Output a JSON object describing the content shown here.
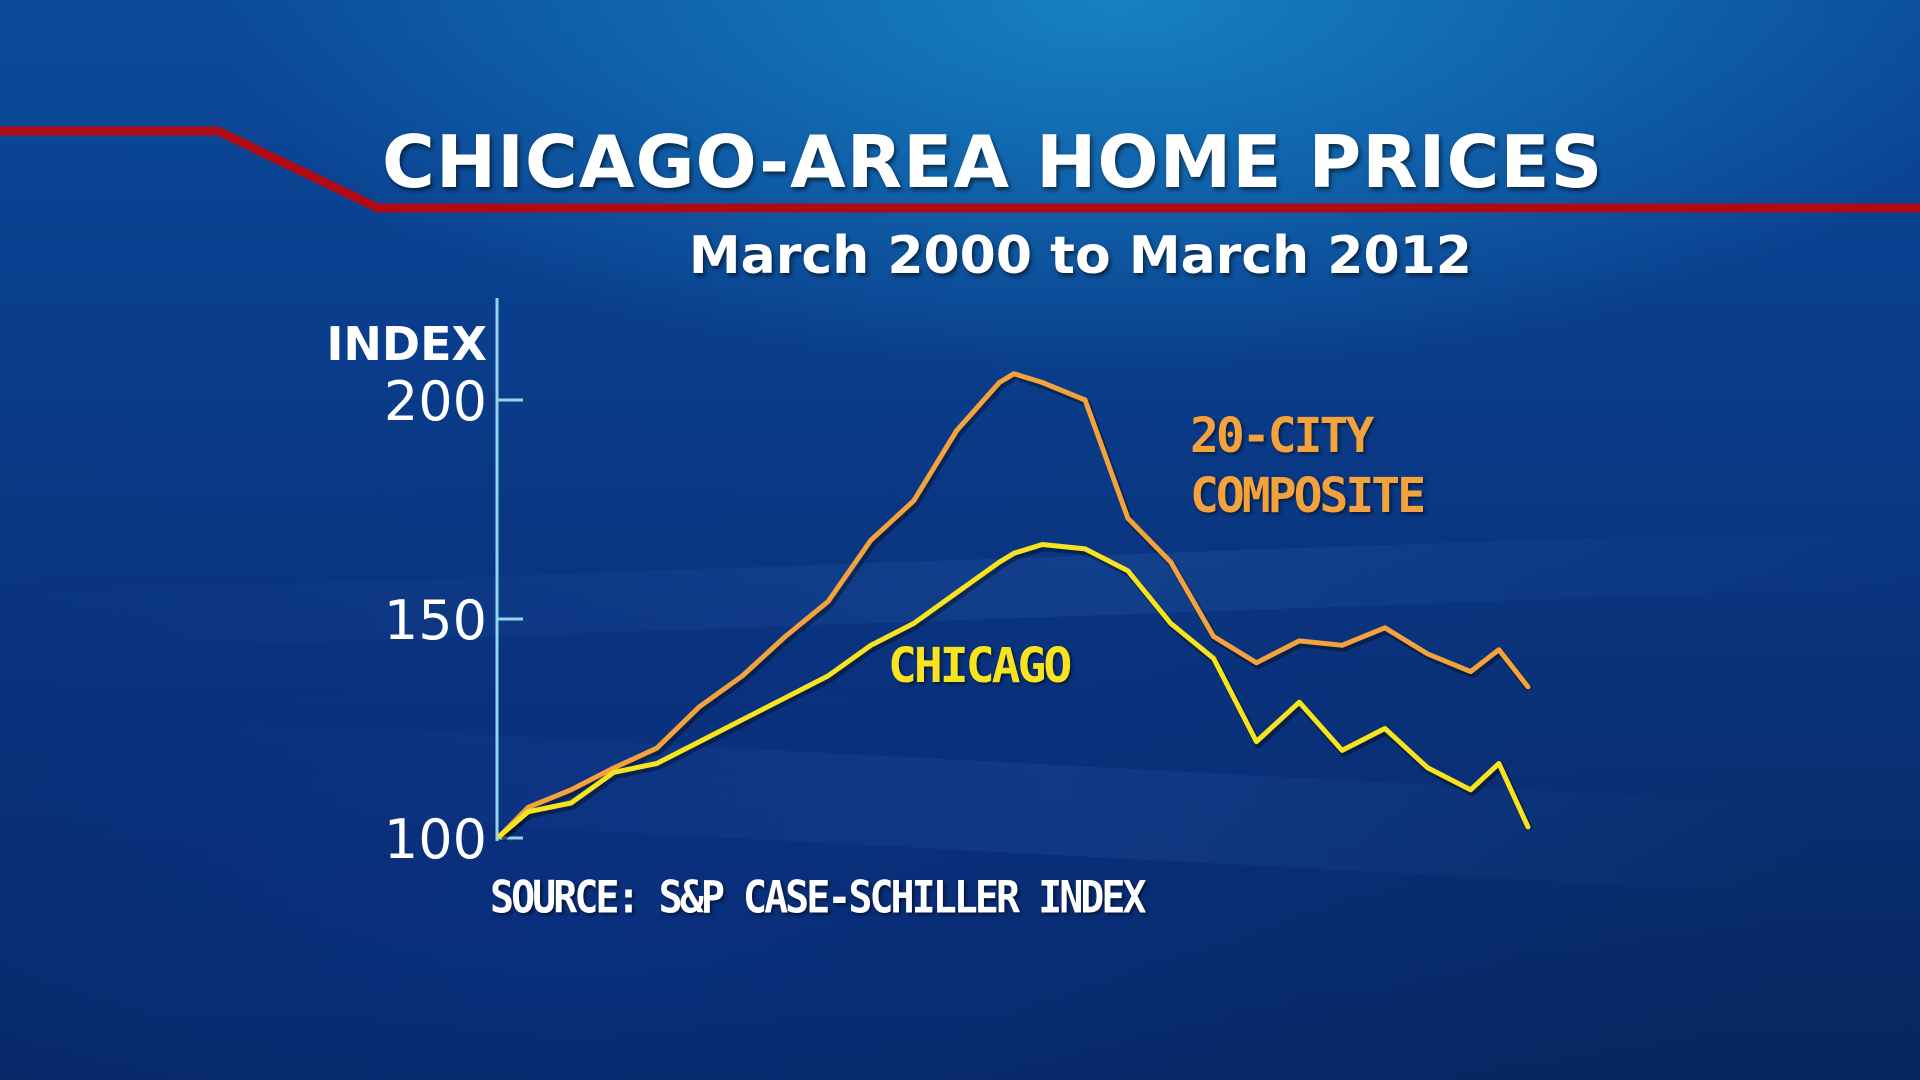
{
  "title": "CHICAGO-AREA HOME PRICES",
  "subtitle": "March 2000 to March 2012",
  "source": "SOURCE: S&P CASE-SCHILLER INDEX",
  "colors": {
    "accent_red": "#b00a14",
    "composite": "#f4a23c",
    "chicago": "#f7e41e",
    "axis": "#8fd6ee"
  },
  "chart_data": {
    "type": "line",
    "title": "CHICAGO-AREA HOME PRICES",
    "subtitle": "March 2000 to March 2012",
    "ylabel": "INDEX",
    "ylim": [
      100,
      210
    ],
    "yticks": [
      100,
      150,
      200
    ],
    "grid": false,
    "x": [
      2000.17,
      2000.5,
      2001.0,
      2001.5,
      2002.0,
      2002.5,
      2003.0,
      2003.5,
      2004.0,
      2004.5,
      2005.0,
      2005.5,
      2006.0,
      2006.17,
      2006.5,
      2007.0,
      2007.5,
      2008.0,
      2008.5,
      2009.0,
      2009.5,
      2010.0,
      2010.5,
      2011.0,
      2011.5,
      2011.83,
      2012.17
    ],
    "series": [
      {
        "name": "20-CITY COMPOSITE",
        "label_lines": [
          "20-CITY",
          "COMPOSITE"
        ],
        "values": [
          100.5,
          107,
          111,
          116,
          120.5,
          130,
          137,
          146,
          154,
          168,
          177,
          193,
          204,
          206,
          204,
          200,
          173,
          163,
          146,
          140,
          145,
          144,
          148,
          142,
          138,
          143,
          134.5
        ]
      },
      {
        "name": "CHICAGO",
        "label_lines": [
          "CHICAGO"
        ],
        "values": [
          100.5,
          106,
          108,
          115,
          117,
          122,
          127,
          132,
          137,
          144,
          149,
          156,
          163,
          165,
          167,
          166,
          161,
          149,
          141,
          122,
          131,
          120,
          125,
          116,
          111,
          117,
          102.5
        ]
      }
    ]
  }
}
